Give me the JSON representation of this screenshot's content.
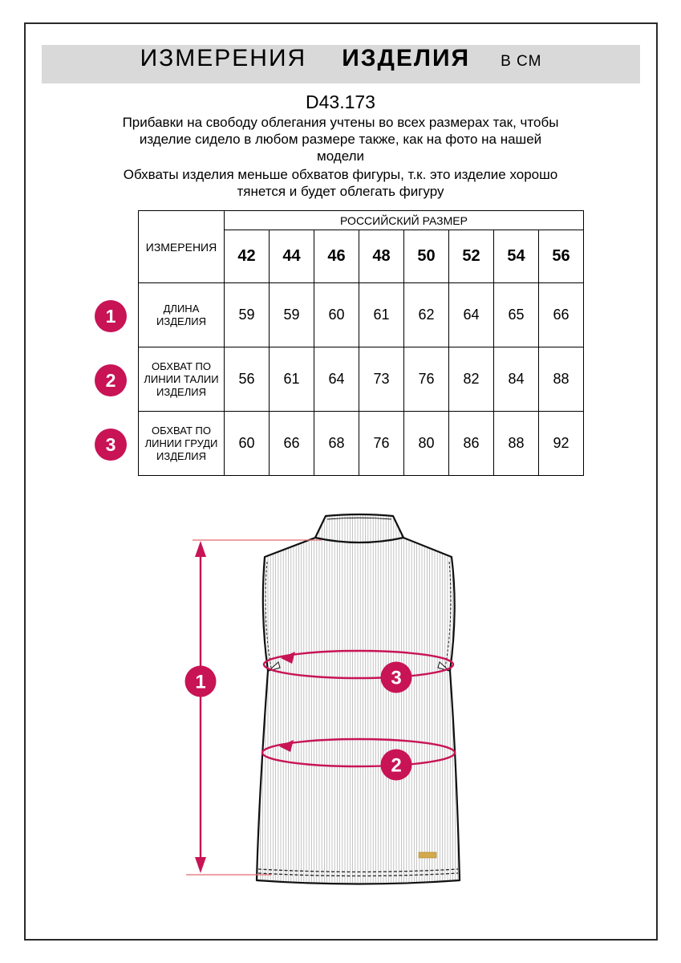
{
  "title": {
    "part1": "ИЗМЕРЕНИЯ",
    "part2": "ИЗДЕЛИЯ",
    "unit": "В СМ"
  },
  "product_code": "D43.173",
  "intro": {
    "para1_line1": "Прибавки на свободу облегания учтены во всех размерах так, чтобы",
    "para1_line2": "изделие сидело в любом размере также, как на фото на нашей",
    "para1_line3": "модели",
    "para2_line1": "Обхваты изделия меньше обхватов фигуры, т.к. это изделие хорошо",
    "para2_line2": "тянется и будет облегать фигуру"
  },
  "table": {
    "measure_col_header": "ИЗМЕРЕНИЯ",
    "size_group_header": "РОССИЙСКИЙ РАЗМЕР",
    "sizes": [
      "42",
      "44",
      "46",
      "48",
      "50",
      "52",
      "54",
      "56"
    ],
    "rows": [
      {
        "num": "1",
        "label": "ДЛИНА ИЗДЕЛИЯ",
        "values": [
          "59",
          "59",
          "60",
          "61",
          "62",
          "64",
          "65",
          "66"
        ]
      },
      {
        "num": "2",
        "label": "ОБХВАТ ПО ЛИНИИ ТАЛИИ ИЗДЕЛИЯ",
        "values": [
          "56",
          "61",
          "64",
          "73",
          "76",
          "82",
          "84",
          "88"
        ]
      },
      {
        "num": "3",
        "label": "ОБХВАТ ПО ЛИНИИ ГРУДИ ИЗДЕЛИЯ",
        "values": [
          "60",
          "66",
          "68",
          "76",
          "80",
          "86",
          "88",
          "92"
        ]
      }
    ]
  },
  "drawing": {
    "marker_length": "1",
    "marker_waist": "2",
    "marker_chest": "3"
  },
  "colors": {
    "accent_crimson": "#c81355",
    "header_bar_gray": "#d9d9d9",
    "rib_gray": "#b5b5b5",
    "brand_label_gold": "#d2a94c"
  }
}
